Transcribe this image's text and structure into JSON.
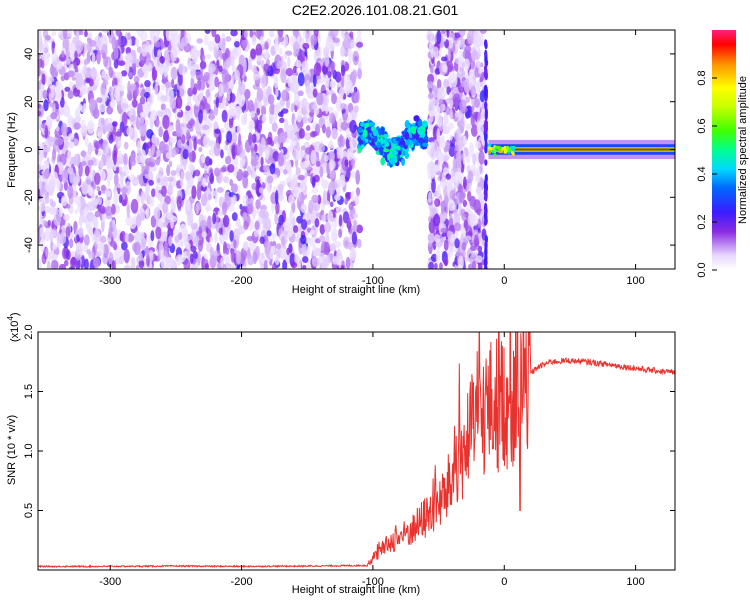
{
  "chart_data": [
    {
      "type": "heatmap",
      "title": "C2E2.2026.101.08.21.G01",
      "xlabel": "Height of straight line (km)",
      "ylabel": "Frequency (Hz)",
      "xlim": [
        -355,
        130
      ],
      "ylim": [
        -50,
        50
      ],
      "x_ticks": [
        -300,
        -200,
        -100,
        0,
        100
      ],
      "y_ticks": [
        -40,
        -20,
        0,
        20,
        40
      ],
      "colorbar": {
        "label": "Normalized spectral amplitude",
        "range": [
          0,
          1
        ],
        "ticks": [
          "0.0",
          "0.2",
          "0.4",
          "0.6",
          "0.8"
        ],
        "tick_values": [
          0,
          0.2,
          0.4,
          0.6,
          0.8
        ]
      },
      "regions": [
        {
          "name": "broadband-noise",
          "x": [
            -355,
            -110
          ],
          "freq": [
            -50,
            50
          ],
          "amplitude": 0.15
        },
        {
          "name": "signal-band-1",
          "x": [
            -110,
            -60
          ],
          "freq": [
            -8,
            12
          ],
          "amplitude": 0.4
        },
        {
          "name": "broadband-noise-2",
          "x": [
            -57,
            -15
          ],
          "freq": [
            -50,
            50
          ],
          "amplitude": 0.15
        },
        {
          "name": "tone-line",
          "x": [
            -12,
            130
          ],
          "freq": [
            -3,
            3
          ],
          "amplitude": 0.95
        }
      ]
    },
    {
      "type": "line",
      "xlabel": "Height of straight line (km)",
      "ylabel": "SNR (10 * v/v)",
      "y_exponent_label": "(x10",
      "y_exponent_power": "4",
      "y_exponent_close": ")",
      "xlim": [
        -355,
        130
      ],
      "ylim": [
        0,
        20000
      ],
      "x_ticks": [
        -300,
        -200,
        -100,
        0,
        100
      ],
      "y_ticks": [
        5000,
        10000,
        15000,
        20000
      ],
      "y_tick_labels": [
        "0.5",
        "1.0",
        "1.5",
        "2.0"
      ],
      "series": [
        {
          "name": "SNR",
          "color": "#e8322e",
          "envelope": [
            [
              -355,
              300
            ],
            [
              -300,
              300
            ],
            [
              -250,
              330
            ],
            [
              -200,
              300
            ],
            [
              -150,
              330
            ],
            [
              -105,
              380
            ],
            [
              -95,
              1500
            ],
            [
              -85,
              2500
            ],
            [
              -75,
              3000
            ],
            [
              -65,
              3800
            ],
            [
              -55,
              5000
            ],
            [
              -45,
              6200
            ],
            [
              -35,
              9000
            ],
            [
              -25,
              11500
            ],
            [
              -15,
              13500
            ],
            [
              -5,
              14000
            ],
            [
              5,
              14500
            ],
            [
              15,
              16000
            ],
            [
              25,
              17000
            ],
            [
              35,
              17500
            ],
            [
              50,
              17600
            ],
            [
              70,
              17400
            ],
            [
              90,
              17100
            ],
            [
              110,
              16800
            ],
            [
              130,
              16600
            ]
          ]
        }
      ]
    }
  ]
}
